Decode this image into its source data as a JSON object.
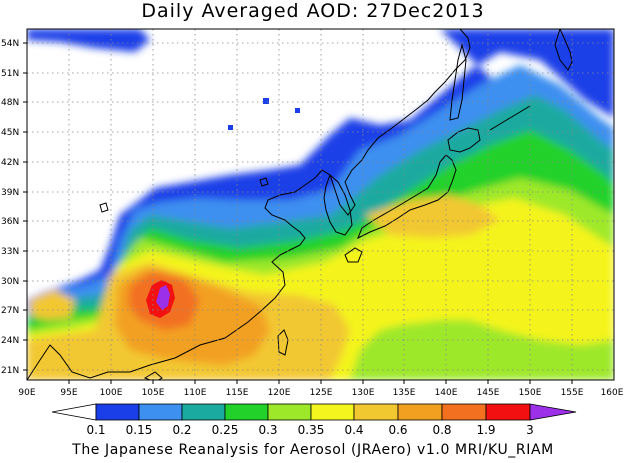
{
  "title": "Daily Averaged AOD: 27Dec2013",
  "footer": "The Japanese Reanalysis for Aerosol (JRAero) v1.0 MRI/KU_RIAM",
  "map": {
    "lon_range": [
      90,
      160
    ],
    "lat_range": [
      19.5,
      55.5
    ],
    "lon_ticks": [
      "90E",
      "95E",
      "100E",
      "105E",
      "110E",
      "115E",
      "120E",
      "125E",
      "130E",
      "135E",
      "140E",
      "145E",
      "150E",
      "155E",
      "160E"
    ],
    "lat_ticks": [
      "21N",
      "24N",
      "27N",
      "30N",
      "33N",
      "36N",
      "39N",
      "42N",
      "45N",
      "48N",
      "51N",
      "54N"
    ]
  },
  "colorbar": {
    "labels": [
      "0.1",
      "0.15",
      "0.2",
      "0.25",
      "0.3",
      "0.35",
      "0.4",
      "0.6",
      "0.8",
      "1.9",
      "3"
    ],
    "colors": [
      "#ffffff",
      "#1a3fe8",
      "#3d8ff0",
      "#1aaaa0",
      "#22d22a",
      "#9ee82a",
      "#f4f41e",
      "#f2c830",
      "#f2a020",
      "#f27020",
      "#f21010",
      "#9b30e8"
    ]
  }
}
